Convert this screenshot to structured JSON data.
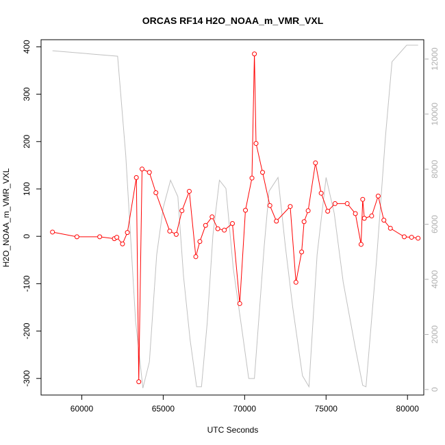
{
  "chart_data": {
    "type": "line",
    "title": "ORCAS RF14 H2O_NOAA_m_VMR_VXL",
    "xlabel": "UTC Seconds",
    "ylabel": "H2O_NOAA_m_VMR_VXL",
    "xlim": [
      57500,
      81000
    ],
    "ylim": [
      -335,
      415
    ],
    "y2lim": [
      -200,
      12700
    ],
    "x_ticks": [
      60000,
      65000,
      70000,
      75000,
      80000
    ],
    "y_ticks": [
      -300,
      -200,
      -100,
      0,
      100,
      200,
      300,
      400
    ],
    "y2_ticks": [
      0,
      2000,
      4000,
      6000,
      8000,
      10000,
      12000
    ],
    "grid": false,
    "legend": "none",
    "series": [
      {
        "color": "#ff0000",
        "marker": "circle-open",
        "axis": "left",
        "x": [
          58200,
          59700,
          61100,
          62000,
          62150,
          62500,
          62800,
          63350,
          63500,
          63700,
          64150,
          64550,
          65400,
          65800,
          66150,
          66600,
          67000,
          67250,
          67600,
          68000,
          68350,
          68750,
          69250,
          69700,
          70050,
          70450,
          70600,
          70700,
          71100,
          71550,
          71950,
          72800,
          73150,
          73500,
          73650,
          73900,
          74350,
          74700,
          75100,
          75550,
          76300,
          76800,
          77150,
          77250,
          77350,
          77800,
          78200,
          78550,
          78950,
          79800,
          80250,
          80650
        ],
        "values": [
          9,
          -1,
          -1,
          -5,
          -2,
          -16,
          8,
          124,
          -307,
          142,
          135,
          92,
          11,
          4,
          54,
          95,
          -43,
          -11,
          23,
          41,
          16,
          13,
          27,
          -142,
          55,
          123,
          385,
          196,
          135,
          65,
          32,
          63,
          -97,
          -33,
          31,
          54,
          155,
          91,
          53,
          69,
          69,
          48,
          -17,
          78,
          38,
          43,
          85,
          34,
          17,
          -1,
          -2,
          -4
        ]
      },
      {
        "color": "#c0c0c0",
        "marker": "none",
        "axis": "right",
        "x": [
          58200,
          62200,
          62700,
          63300,
          63750,
          64150,
          64600,
          65000,
          65450,
          65900,
          66250,
          66650,
          67050,
          67350,
          67700,
          68050,
          68450,
          68850,
          69300,
          69850,
          70250,
          70600,
          71200,
          71500,
          72050,
          72500,
          72950,
          73550,
          73950,
          74450,
          75000,
          75500,
          76050,
          76800,
          77250,
          77450,
          78100,
          78650,
          79050,
          79950,
          80650
        ],
        "values": [
          12300,
          12100,
          8500,
          2500,
          50,
          1000,
          4900,
          6600,
          7600,
          7000,
          4100,
          1800,
          100,
          100,
          2400,
          5600,
          7600,
          7300,
          4400,
          2100,
          400,
          400,
          5200,
          7200,
          7700,
          5200,
          3000,
          500,
          100,
          4900,
          7700,
          6400,
          3900,
          1500,
          150,
          100,
          4700,
          9200,
          11900,
          12500,
          12500
        ]
      }
    ]
  }
}
